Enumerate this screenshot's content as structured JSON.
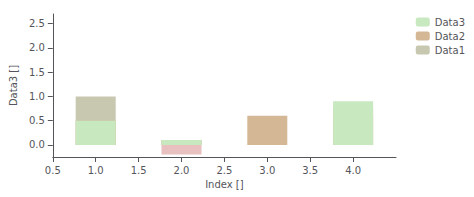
{
  "chart_data": {
    "type": "bar",
    "stacked": true,
    "xlabel": "Index []",
    "ylabel": "Data3 []",
    "x": [
      1,
      2,
      3,
      4
    ],
    "series": [
      {
        "name": "Data1",
        "color": "#c8c8b0",
        "values": [
          1.0,
          0.1,
          0.0,
          0.8
        ]
      },
      {
        "color": "#e8c0c0",
        "values": [
          0.0,
          -0.2,
          0.0,
          0.0
        ]
      },
      {
        "name": "Data2",
        "color": "#d4b896",
        "values": [
          0.5,
          0.1,
          0.6,
          0.6
        ]
      },
      {
        "name": "Data3",
        "color": "#c8e8c0",
        "values": [
          0.5,
          0.1,
          0.0,
          0.9
        ]
      }
    ],
    "xlim": [
      0.5,
      4.5
    ],
    "xticks": [
      0.5,
      {
        "value": 1.0,
        "label": "1.0"
      },
      1.5,
      {
        "value": 2.0,
        "label": "2.0"
      },
      2.5,
      {
        "value": 3.0,
        "label": "3.0"
      },
      3.5,
      {
        "value": 4.0,
        "label": "4.0"
      }
    ],
    "ylim": [
      -0.25,
      2.7
    ],
    "yticks": [
      {
        "value": 0,
        "label": "0.0"
      },
      0.5,
      {
        "value": 1.0,
        "label": "1.0"
      },
      1.5,
      {
        "value": 2.0,
        "label": "2.0"
      },
      2.5
    ],
    "grid": false,
    "legend": "upper right"
  }
}
